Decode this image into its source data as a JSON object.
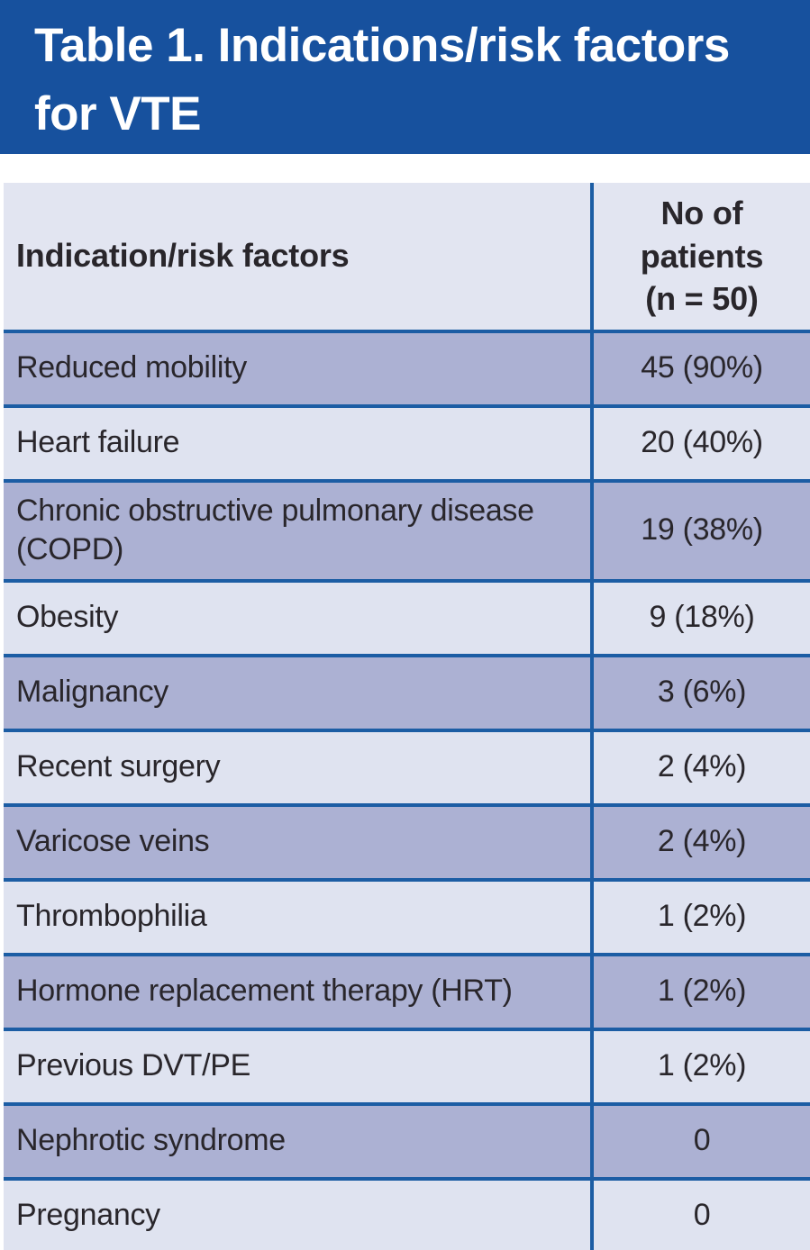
{
  "title": "Table 1. Indications/risk factors\nfor VTE",
  "table": {
    "header": {
      "label": "Indication/risk factors",
      "value": "No of\npatients\n(n = 50)"
    },
    "rows": [
      {
        "label": "Reduced mobility",
        "value": "45 (90%)"
      },
      {
        "label": "Heart failure",
        "value": "20 (40%)"
      },
      {
        "label": "Chronic obstructive pulmonary disease (COPD)",
        "value": "19 (38%)"
      },
      {
        "label": "Obesity",
        "value": "9 (18%)"
      },
      {
        "label": "Malignancy",
        "value": "3 (6%)"
      },
      {
        "label": "Recent surgery",
        "value": "2 (4%)"
      },
      {
        "label": "Varicose veins",
        "value": "2 (4%)"
      },
      {
        "label": "Thrombophilia",
        "value": "1 (2%)"
      },
      {
        "label": "Hormone replacement therapy (HRT)",
        "value": "1 (2%)"
      },
      {
        "label": "Previous DVT/PE",
        "value": "1 (2%)"
      },
      {
        "label": "Nephrotic syndrome",
        "value": "0"
      },
      {
        "label": "Pregnancy",
        "value": "0"
      }
    ]
  },
  "chart_data": {
    "type": "table",
    "title": "Table 1. Indications/risk factors for VTE",
    "columns": [
      "Indication/risk factors",
      "No of patients (n = 50)"
    ],
    "categories": [
      "Reduced mobility",
      "Heart failure",
      "Chronic obstructive pulmonary disease (COPD)",
      "Obesity",
      "Malignancy",
      "Recent surgery",
      "Varicose veins",
      "Thrombophilia",
      "Hormone replacement therapy (HRT)",
      "Previous DVT/PE",
      "Nephrotic syndrome",
      "Pregnancy"
    ],
    "values": [
      45,
      20,
      19,
      9,
      3,
      2,
      2,
      1,
      1,
      1,
      0,
      0
    ],
    "percentages": [
      90,
      40,
      38,
      18,
      6,
      4,
      4,
      2,
      2,
      2,
      0,
      0
    ]
  },
  "colors": {
    "banner_blue": "#17519E",
    "line_blue": "#1C5DA4",
    "dark_row": "#ACB1D3",
    "light_row": "#DFE3F0",
    "header_bg": "#E2E5F1",
    "text_dark": "#29262B"
  }
}
